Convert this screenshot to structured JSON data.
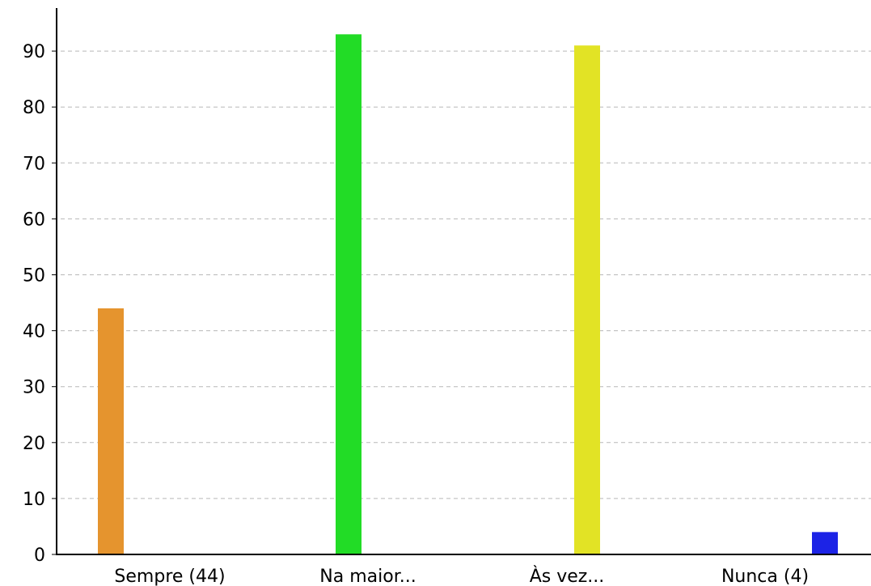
{
  "chart_data": {
    "type": "bar",
    "categories": [
      "Sempre (44)",
      "Na maior...",
      "Às vez...",
      "Nunca (4)"
    ],
    "values": [
      44,
      93,
      91,
      4
    ],
    "colors": [
      "#e5942e",
      "#22dc26",
      "#e2e325",
      "#1c23e6"
    ],
    "title": "",
    "xlabel": "",
    "ylabel": "",
    "ylim": [
      0,
      97
    ],
    "yticks": [
      0,
      10,
      20,
      30,
      40,
      50,
      60,
      70,
      80,
      90
    ],
    "grid": "y-dashed",
    "legend": "none"
  }
}
